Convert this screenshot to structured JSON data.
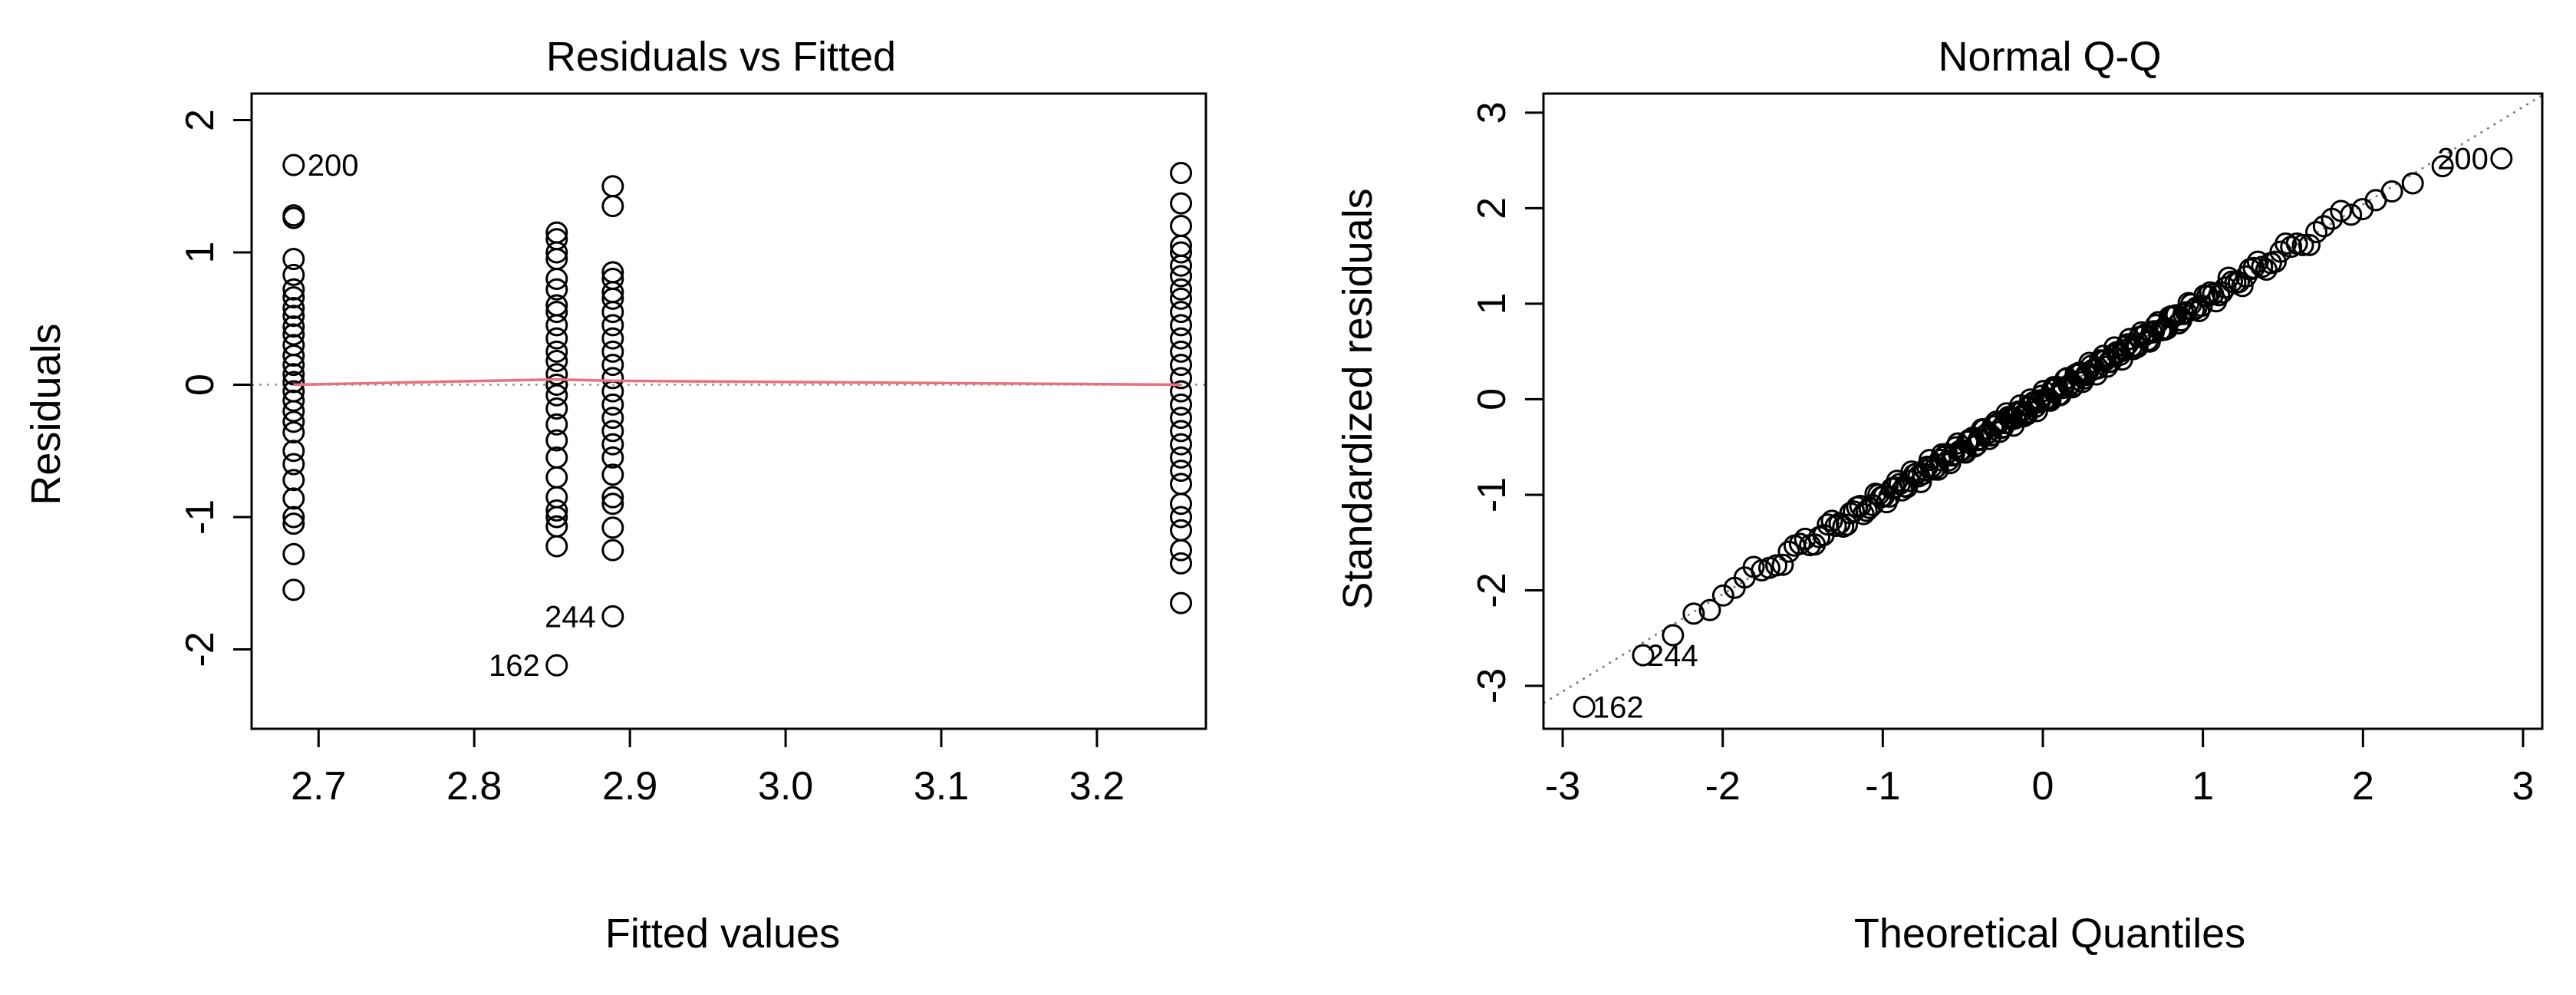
{
  "chart_data": [
    {
      "id": "left",
      "type": "scatter",
      "title": "Residuals vs Fitted",
      "xlabel": "Fitted values",
      "ylabel": "Residuals",
      "xlim": [
        2.657,
        3.27
      ],
      "ylim": [
        -2.6,
        2.2
      ],
      "xticks": [
        2.7,
        2.8,
        2.9,
        3.0,
        3.1,
        3.2
      ],
      "xtick_labels": [
        "2.7",
        "2.8",
        "2.9",
        "3.0",
        "3.1",
        "3.2"
      ],
      "yticks": [
        -2,
        -1,
        0,
        1,
        2
      ],
      "ytick_labels": [
        "-2",
        "-1",
        "0",
        "1",
        "2"
      ],
      "groups": [
        {
          "x": 2.684,
          "residuals": [
            1.66,
            1.28,
            1.26,
            0.95,
            0.83,
            0.72,
            0.66,
            0.58,
            0.52,
            0.44,
            0.38,
            0.3,
            0.22,
            0.15,
            0.08,
            0.02,
            -0.05,
            -0.12,
            -0.2,
            -0.28,
            -0.36,
            -0.5,
            -0.6,
            -0.72,
            -0.86,
            -1.0,
            -1.05,
            -1.28,
            -1.55
          ]
        },
        {
          "x": 2.853,
          "residuals": [
            1.15,
            1.1,
            1.0,
            0.95,
            0.8,
            0.72,
            0.6,
            0.55,
            0.45,
            0.35,
            0.25,
            0.18,
            0.08,
            0.0,
            -0.08,
            -0.18,
            -0.3,
            -0.42,
            -0.55,
            -0.7,
            -0.85,
            -0.95,
            -1.0,
            -1.07,
            -1.22,
            -2.12
          ]
        },
        {
          "x": 2.889,
          "residuals": [
            1.5,
            1.35,
            0.85,
            0.8,
            0.7,
            0.65,
            0.55,
            0.45,
            0.35,
            0.25,
            0.15,
            0.05,
            -0.05,
            -0.15,
            -0.25,
            -0.35,
            -0.45,
            -0.55,
            -0.68,
            -0.85,
            -0.9,
            -1.08,
            -1.25,
            -1.75
          ]
        },
        {
          "x": 3.254,
          "residuals": [
            1.6,
            1.37,
            1.2,
            1.05,
            1.0,
            0.9,
            0.82,
            0.72,
            0.65,
            0.55,
            0.45,
            0.35,
            0.25,
            0.15,
            0.05,
            -0.05,
            -0.15,
            -0.25,
            -0.35,
            -0.45,
            -0.55,
            -0.65,
            -0.75,
            -0.9,
            -1.0,
            -1.1,
            -1.25,
            -1.35,
            -1.65
          ]
        }
      ],
      "smooth_line": {
        "x": [
          2.684,
          2.853,
          2.889,
          3.254
        ],
        "y": [
          0.0,
          0.04,
          0.03,
          0.0
        ],
        "color": "#e8707c"
      },
      "reference_line": {
        "y": 0,
        "style": "dotted",
        "color": "#999999"
      },
      "labeled_points": [
        {
          "label": "200",
          "x": 2.684,
          "y": 1.66,
          "side": "right"
        },
        {
          "label": "244",
          "x": 2.889,
          "y": -1.75,
          "side": "left"
        },
        {
          "label": "162",
          "x": 2.853,
          "y": -2.12,
          "side": "left"
        }
      ]
    },
    {
      "id": "right",
      "type": "scatter",
      "title": "Normal Q-Q",
      "xlabel": "Theoretical Quantiles",
      "ylabel": "Standardized residuals",
      "xlim": [
        -3.12,
        3.12
      ],
      "ylim": [
        -3.45,
        3.2
      ],
      "xticks": [
        -3,
        -2,
        -1,
        0,
        1,
        2,
        3
      ],
      "xtick_labels": [
        "-3",
        "-2",
        "-1",
        "0",
        "1",
        "2",
        "3"
      ],
      "yticks": [
        -3,
        -2,
        -1,
        0,
        1,
        2,
        3
      ],
      "ytick_labels": [
        "-3",
        "-2",
        "-1",
        "0",
        "1",
        "2",
        "3"
      ],
      "n_points": 240,
      "reference_line": {
        "slope": 1.02,
        "intercept": 0,
        "style": "dotted",
        "color": "#777777"
      },
      "labeled_points": [
        {
          "label": "200",
          "x": 2.88,
          "y": 2.52,
          "side": "left"
        },
        {
          "label": "244",
          "x": -2.56,
          "y": -2.68,
          "side": "right"
        },
        {
          "label": "162",
          "x": -2.9,
          "y": -3.22,
          "side": "right"
        }
      ]
    }
  ]
}
